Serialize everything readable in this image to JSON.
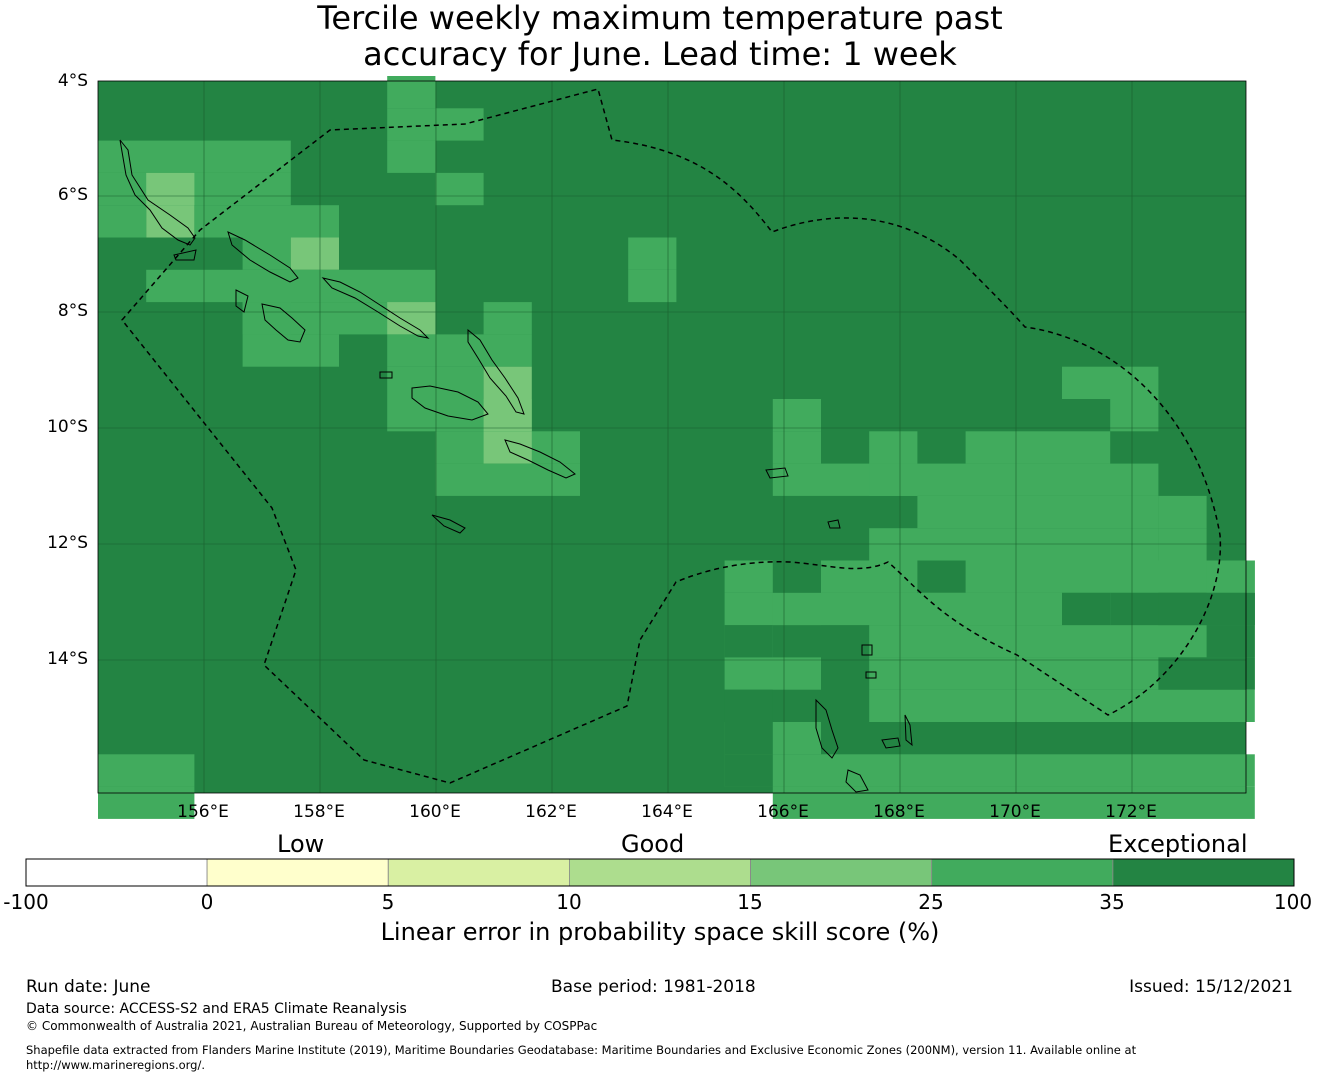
{
  "title": {
    "line1": "Tercile weekly maximum temperature past",
    "line2": "accuracy for June. Lead time: 1 week"
  },
  "map": {
    "lat_ticks": [
      "4°S",
      "6°S",
      "8°S",
      "10°S",
      "12°S",
      "14°S"
    ],
    "lon_ticks": [
      "156°E",
      "158°E",
      "160°E",
      "162°E",
      "164°E",
      "166°E",
      "168°E",
      "170°E",
      "172°E"
    ],
    "grid_lines": true,
    "boundary_style": "dashed",
    "base_color": "#238443",
    "skill_grid_note_bins": "values are LEPS skill score bins: 25-35 medium green, 15-25 light green"
  },
  "colorbar": {
    "categories": [
      "Low",
      "Good",
      "Exceptional"
    ],
    "ticks": [
      "-100",
      "0",
      "5",
      "10",
      "15",
      "25",
      "35",
      "100"
    ],
    "colors": [
      "#ffffff",
      "#ffffcc",
      "#d9f0a3",
      "#addd8e",
      "#78c679",
      "#41ab5d",
      "#238443"
    ],
    "title": "Linear error in probability space skill score (%)"
  },
  "footer": {
    "run_date": "Run date: June",
    "base_period": "Base period: 1981-2018",
    "issued": "Issued: 15/12/2021",
    "data_source": "Data source: ACCESS-S2 and ERA5 Climate Reanalysis",
    "copyright": "© Commonwealth of Australia 2021, Australian Bureau of Meteorology, Supported by COSPPac",
    "shapefile_line1": "Shapefile data extracted from Flanders Marine Institute (2019), Maritime Boundaries Geodatabase: Maritime Boundaries and Exclusive Economic Zones (200NM), version 11. Available online at",
    "shapefile_line2": "http://www.marineregions.org/."
  }
}
